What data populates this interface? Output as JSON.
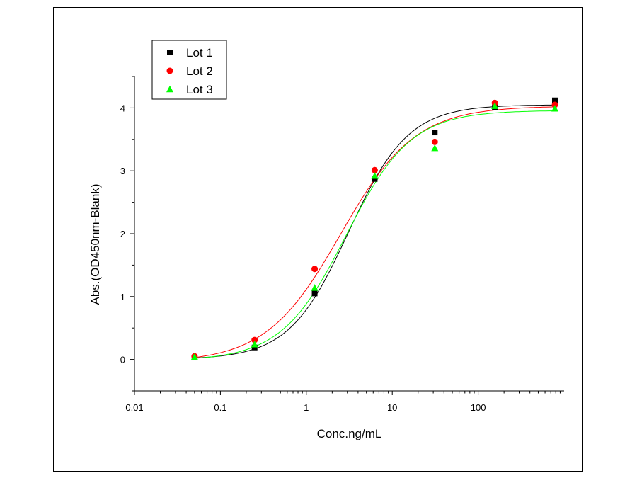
{
  "chart_data": {
    "type": "scatter",
    "title": "",
    "xlabel": "Conc.ng/mL",
    "ylabel": "Abs.(OD450nm-Blank)",
    "x_scale": "log",
    "xlim": [
      0.01,
      1000
    ],
    "ylim": [
      -0.5,
      4.5
    ],
    "x_ticks": [
      {
        "value": 0.01,
        "label": "0.01"
      },
      {
        "value": 0.1,
        "label": "0.1"
      },
      {
        "value": 1,
        "label": "1"
      },
      {
        "value": 10,
        "label": "10"
      },
      {
        "value": 100,
        "label": "100"
      }
    ],
    "y_ticks": [
      {
        "value": 0,
        "label": "0"
      },
      {
        "value": 1,
        "label": "1"
      },
      {
        "value": 2,
        "label": "2"
      },
      {
        "value": 3,
        "label": "3"
      },
      {
        "value": 4,
        "label": "4"
      }
    ],
    "grid": false,
    "legend_position": "top-left",
    "series": [
      {
        "name": "Lot 1",
        "marker": "square",
        "color": "#000000",
        "x": [
          0.05,
          0.25,
          1.25,
          6.25,
          31.25,
          156.25,
          781.25
        ],
        "y": [
          0.03,
          0.19,
          1.05,
          2.87,
          3.61,
          4.01,
          4.12
        ],
        "fit": {
          "bottom": 0.0,
          "top": 4.05,
          "ec50": 3.1,
          "hill": 1.25
        }
      },
      {
        "name": "Lot 2",
        "marker": "circle",
        "color": "#ff0000",
        "x": [
          0.05,
          0.25,
          1.25,
          6.25,
          31.25,
          156.25,
          781.25
        ],
        "y": [
          0.05,
          0.31,
          1.44,
          3.01,
          3.46,
          4.08,
          4.05
        ],
        "fit": {
          "bottom": -0.05,
          "top": 4.03,
          "ec50": 2.5,
          "hill": 1.0
        }
      },
      {
        "name": "Lot 3",
        "marker": "triangle",
        "color": "#00ff00",
        "x": [
          0.05,
          0.25,
          1.25,
          6.25,
          31.25,
          156.25,
          781.25
        ],
        "y": [
          0.04,
          0.24,
          1.14,
          2.92,
          3.36,
          4.03,
          3.99
        ],
        "fit": {
          "bottom": -0.02,
          "top": 3.96,
          "ec50": 2.9,
          "hill": 1.15
        }
      }
    ]
  }
}
